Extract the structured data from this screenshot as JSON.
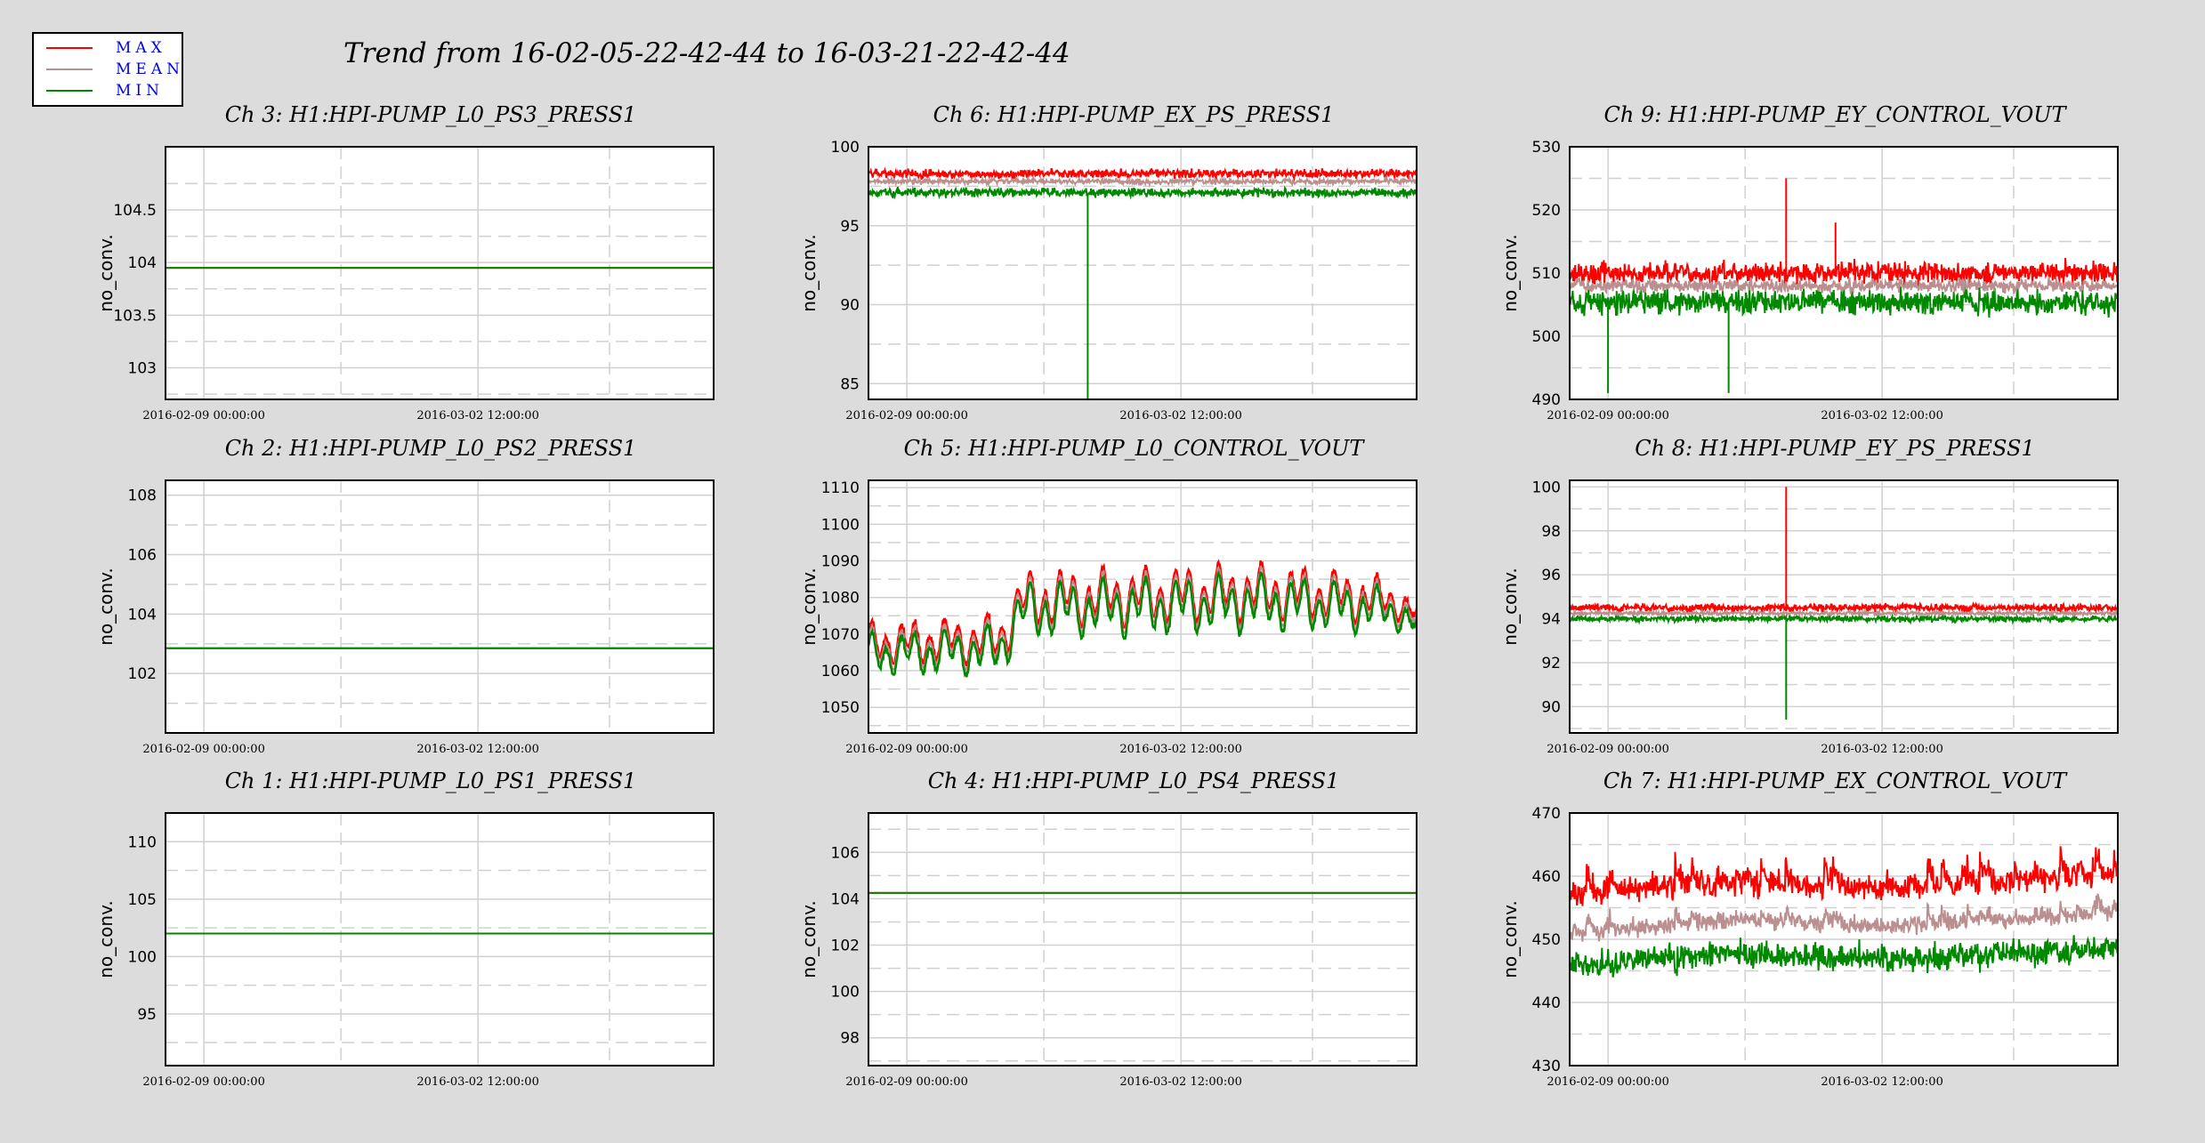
{
  "title": "Trend from 16-02-05-22-42-44 to 16-03-21-22-42-44",
  "legend": [
    {
      "label": "MAX",
      "color": "#ff0000"
    },
    {
      "label": "MEAN",
      "color": "#b09090"
    },
    {
      "label": "MIN",
      "color": "#008800"
    }
  ],
  "colors": {
    "max": "#ff0000",
    "mean": "#bb8f8f",
    "min": "#008800",
    "background": "#dcdcdc"
  },
  "chart_data": [
    {
      "type": "line",
      "title": "Ch 3: H1:HPI-PUMP_L0_PS3_PRESS1",
      "ylabel": "no_conv.",
      "ylim": [
        102.7,
        105.1
      ],
      "yticks": [
        103,
        103.5,
        104,
        104.5
      ],
      "xticks": [
        "2016-02-09 00:00:00",
        "2016-03-02 12:00:00"
      ],
      "trend": {
        "kind": "flat",
        "level": 103.95
      }
    },
    {
      "type": "line",
      "title": "Ch 6: H1:HPI-PUMP_EX_PS_PRESS1",
      "ylabel": "no_conv.",
      "ylim": [
        84,
        100
      ],
      "yticks": [
        85,
        90,
        95,
        100
      ],
      "xticks": [
        "2016-02-09 00:00:00",
        "2016-03-02 12:00:00"
      ],
      "trend": {
        "kind": "noise",
        "max": 98.3,
        "mean": 97.8,
        "min": 97.1,
        "maxSpread": 0.4,
        "meanSpread": 0.25,
        "minSpread": 0.4,
        "spikes": [
          {
            "at": 0.4,
            "series": "min",
            "value": 84
          }
        ]
      }
    },
    {
      "type": "line",
      "title": "Ch 9: H1:HPI-PUMP_EY_CONTROL_VOUT",
      "ylabel": "no_conv.",
      "ylim": [
        490,
        530
      ],
      "yticks": [
        490,
        500,
        510,
        520,
        530
      ],
      "xticks": [
        "2016-02-09 00:00:00",
        "2016-03-02 12:00:00"
      ],
      "trend": {
        "kind": "noise",
        "max": 510,
        "mean": 508,
        "min": 505.5,
        "maxSpread": 2.5,
        "meanSpread": 1.5,
        "minSpread": 3,
        "spikes": [
          {
            "at": 0.395,
            "series": "max",
            "value": 525
          },
          {
            "at": 0.485,
            "series": "max",
            "value": 518
          },
          {
            "at": 0.07,
            "series": "min",
            "value": 491
          },
          {
            "at": 0.29,
            "series": "min",
            "value": 491
          }
        ]
      }
    },
    {
      "type": "line",
      "title": "Ch 2: H1:HPI-PUMP_L0_PS2_PRESS1",
      "ylabel": "no_conv.",
      "ylim": [
        100,
        108.5
      ],
      "yticks": [
        102,
        104,
        106,
        108
      ],
      "xticks": [
        "2016-02-09 00:00:00",
        "2016-03-02 12:00:00"
      ],
      "trend": {
        "kind": "flat",
        "level": 102.85
      }
    },
    {
      "type": "line",
      "title": "Ch 5: H1:HPI-PUMP_L0_CONTROL_VOUT",
      "ylabel": "no_conv.",
      "ylim": [
        1043,
        1112
      ],
      "yticks": [
        1050,
        1060,
        1070,
        1080,
        1090,
        1100,
        1110
      ],
      "xticks": [
        "2016-02-09 00:00:00",
        "2016-03-02 12:00:00"
      ],
      "trend": {
        "kind": "oscillating",
        "base": [
          [
            0,
            1066
          ],
          [
            0.24,
            1067
          ],
          [
            0.28,
            1078
          ],
          [
            0.5,
            1079
          ],
          [
            0.75,
            1080
          ],
          [
            0.95,
            1078
          ],
          [
            1,
            1074
          ]
        ],
        "amp": [
          [
            0,
            10
          ],
          [
            0.24,
            12
          ],
          [
            0.28,
            14
          ],
          [
            0.75,
            14
          ],
          [
            0.9,
            12
          ],
          [
            1,
            6
          ]
        ],
        "cycles": 38
      }
    },
    {
      "type": "line",
      "title": "Ch 8: H1:HPI-PUMP_EY_PS_PRESS1",
      "ylabel": "no_conv.",
      "ylim": [
        88.8,
        100.3
      ],
      "yticks": [
        90,
        92,
        94,
        96,
        98,
        100
      ],
      "xticks": [
        "2016-02-09 00:00:00",
        "2016-03-02 12:00:00"
      ],
      "trend": {
        "kind": "noise",
        "max": 94.5,
        "mean": 94.25,
        "min": 94.0,
        "maxSpread": 0.25,
        "meanSpread": 0.12,
        "minSpread": 0.2,
        "spikes": [
          {
            "at": 0.395,
            "series": "max",
            "value": 100
          },
          {
            "at": 0.395,
            "series": "min",
            "value": 89.4
          }
        ]
      }
    },
    {
      "type": "line",
      "title": "Ch 1: H1:HPI-PUMP_L0_PS1_PRESS1",
      "ylabel": "no_conv.",
      "ylim": [
        90.5,
        112.5
      ],
      "yticks": [
        95,
        100,
        105,
        110
      ],
      "xticks": [
        "2016-02-09 00:00:00",
        "2016-03-02 12:00:00"
      ],
      "trend": {
        "kind": "flat",
        "level": 102
      }
    },
    {
      "type": "line",
      "title": "Ch 4: H1:HPI-PUMP_L0_PS4_PRESS1",
      "ylabel": "no_conv.",
      "ylim": [
        96.8,
        107.7
      ],
      "yticks": [
        98,
        100,
        102,
        104,
        106
      ],
      "xticks": [
        "2016-02-09 00:00:00",
        "2016-03-02 12:00:00"
      ],
      "trend": {
        "kind": "flat",
        "level": 104.25
      }
    },
    {
      "type": "line",
      "title": "Ch 7: H1:HPI-PUMP_EX_CONTROL_VOUT",
      "ylabel": "no_conv.",
      "ylim": [
        430,
        470
      ],
      "yticks": [
        430,
        440,
        450,
        460,
        470
      ],
      "xticks": [
        "2016-02-09 00:00:00",
        "2016-03-02 12:00:00"
      ],
      "trend": {
        "kind": "noise",
        "max": 457,
        "mean": 451,
        "min": 446,
        "maxSpread": 3,
        "meanSpread": 2,
        "minSpread": 3,
        "drift": [
          [
            0,
            0
          ],
          [
            0.3,
            2
          ],
          [
            0.6,
            1
          ],
          [
            1,
            3
          ]
        ],
        "burst": 6
      }
    }
  ]
}
